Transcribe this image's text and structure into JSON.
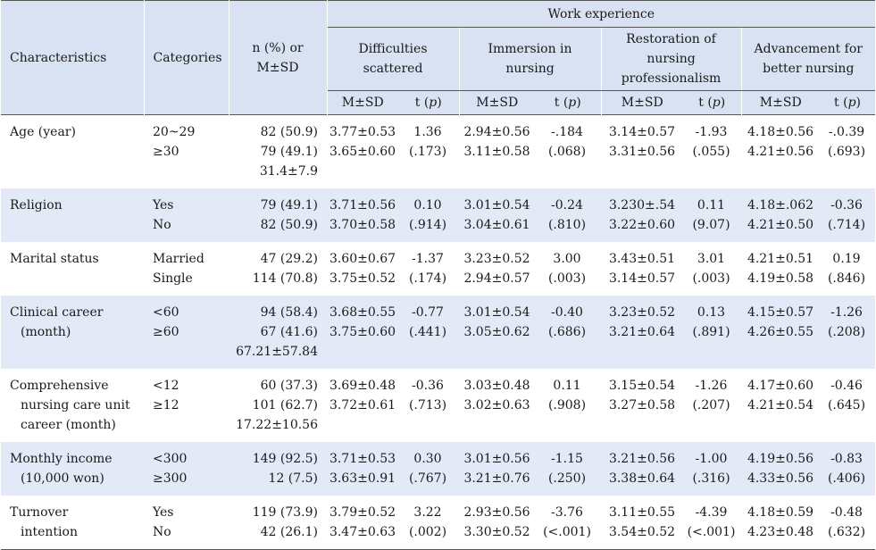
{
  "header": {
    "characteristics": "Characteristics",
    "categories": "Categories",
    "n_pct_line1": "n (%) or",
    "n_pct_line2": "M±SD",
    "work_experience": "Work experience",
    "groups": [
      {
        "lines": [
          "Difficulties",
          "scattered"
        ]
      },
      {
        "lines": [
          "Immersion in",
          "nursing"
        ]
      },
      {
        "lines": [
          "Restoration of",
          "nursing",
          "professionalism"
        ]
      },
      {
        "lines": [
          "Advancement for",
          "better nursing"
        ]
      }
    ],
    "msd": "M±SD",
    "t_label": "t (",
    "p_label": "p",
    "t_close": ")"
  },
  "rows": [
    {
      "char": [
        "Age (year)"
      ],
      "cats": [
        "20~29",
        "≥30"
      ],
      "n": [
        "82 (50.9)",
        "79 (49.1)",
        "31.4±7.9"
      ],
      "vals": [
        {
          "msd": [
            "3.77±0.53",
            "3.65±0.60"
          ],
          "t": [
            "1.36",
            "(.173)"
          ]
        },
        {
          "msd": [
            "2.94±0.56",
            "3.11±0.58"
          ],
          "t": [
            "-.184",
            "(.068)"
          ]
        },
        {
          "msd": [
            "3.14±0.57",
            "3.31±0.56"
          ],
          "t": [
            "-1.93",
            "(.055)"
          ]
        },
        {
          "msd": [
            "4.18±0.56",
            "4.21±0.56"
          ],
          "t": [
            "-.0.39",
            "(.693)"
          ]
        }
      ]
    },
    {
      "char": [
        "Religion"
      ],
      "cats": [
        "Yes",
        "No"
      ],
      "n": [
        "79 (49.1)",
        "82 (50.9)"
      ],
      "vals": [
        {
          "msd": [
            "3.71±0.56",
            "3.70±0.58"
          ],
          "t": [
            "0.10",
            "(.914)"
          ]
        },
        {
          "msd": [
            "3.01±0.54",
            "3.04±0.61"
          ],
          "t": [
            "-0.24",
            "(.810)"
          ]
        },
        {
          "msd": [
            "3.230±.54",
            "3.22±0.60"
          ],
          "t": [
            "0.11",
            "(9.07)"
          ]
        },
        {
          "msd": [
            "4.18±.062",
            "4.21±0.50"
          ],
          "t": [
            "-0.36",
            "(.714)"
          ]
        }
      ]
    },
    {
      "char": [
        "Marital status"
      ],
      "cats": [
        "Married",
        "Single"
      ],
      "n": [
        "47 (29.2)",
        "114 (70.8)"
      ],
      "vals": [
        {
          "msd": [
            "3.60±0.67",
            "3.75±0.52"
          ],
          "t": [
            "-1.37",
            "(.174)"
          ]
        },
        {
          "msd": [
            "3.23±0.52",
            "2.94±0.57"
          ],
          "t": [
            "3.00",
            "(.003)"
          ]
        },
        {
          "msd": [
            "3.43±0.51",
            "3.14±0.57"
          ],
          "t": [
            "3.01",
            "(.003)"
          ]
        },
        {
          "msd": [
            "4.21±0.51",
            "4.19±0.58"
          ],
          "t": [
            "0.19",
            "(.846)"
          ]
        }
      ]
    },
    {
      "char": [
        "Clinical career",
        "(month)"
      ],
      "cats": [
        "<60",
        "≥60"
      ],
      "n": [
        "94 (58.4)",
        "67 (41.6)",
        "67.21±57.84"
      ],
      "vals": [
        {
          "msd": [
            "3.68±0.55",
            "3.75±0.60"
          ],
          "t": [
            "-0.77",
            "(.441)"
          ]
        },
        {
          "msd": [
            "3.01±0.54",
            "3.05±0.62"
          ],
          "t": [
            "-0.40",
            "(.686)"
          ]
        },
        {
          "msd": [
            "3.23±0.52",
            "3.21±0.64"
          ],
          "t": [
            "0.13",
            "(.891)"
          ]
        },
        {
          "msd": [
            "4.15±0.57",
            "4.26±0.55"
          ],
          "t": [
            "-1.26",
            "(.208)"
          ]
        }
      ]
    },
    {
      "char": [
        "Comprehensive",
        "nursing care unit",
        "career (month)"
      ],
      "cats": [
        "<12",
        "≥12"
      ],
      "n": [
        "60 (37.3)",
        "101 (62.7)",
        "17.22±10.56"
      ],
      "vals": [
        {
          "msd": [
            "3.69±0.48",
            "3.72±0.61"
          ],
          "t": [
            "-0.36",
            "(.713)"
          ]
        },
        {
          "msd": [
            "3.03±0.48",
            "3.02±0.63"
          ],
          "t": [
            "0.11",
            "(.908)"
          ]
        },
        {
          "msd": [
            "3.15±0.54",
            "3.27±0.58"
          ],
          "t": [
            "-1.26",
            "(.207)"
          ]
        },
        {
          "msd": [
            "4.17±0.60",
            "4.21±0.54"
          ],
          "t": [
            "-0.46",
            "(.645)"
          ]
        }
      ]
    },
    {
      "char": [
        "Monthly income",
        "(10,000 won)"
      ],
      "cats": [
        "<300",
        "≥300"
      ],
      "n": [
        "149 (92.5)",
        "12 (7.5)"
      ],
      "vals": [
        {
          "msd": [
            "3.71±0.53",
            "3.63±0.91"
          ],
          "t": [
            "0.30",
            "(.767)"
          ]
        },
        {
          "msd": [
            "3.01±0.56",
            "3.21±0.76"
          ],
          "t": [
            "-1.15",
            "(.250)"
          ]
        },
        {
          "msd": [
            "3.21±0.56",
            "3.38±0.64"
          ],
          "t": [
            "-1.00",
            "(.316)"
          ]
        },
        {
          "msd": [
            "4.19±0.56",
            "4.33±0.56"
          ],
          "t": [
            "-0.83",
            "(.406)"
          ]
        }
      ]
    },
    {
      "char": [
        "Turnover",
        "intention"
      ],
      "cats": [
        "Yes",
        "No"
      ],
      "n": [
        "119 (73.9)",
        "42 (26.1)"
      ],
      "vals": [
        {
          "msd": [
            "3.79±0.52",
            "3.47±0.63"
          ],
          "t": [
            "3.22",
            "(.002)"
          ]
        },
        {
          "msd": [
            "2.93±0.56",
            "3.30±0.52"
          ],
          "t": [
            "-3.76",
            "(<.001)"
          ]
        },
        {
          "msd": [
            "3.11±0.55",
            "3.54±0.52"
          ],
          "t": [
            "-4.39",
            "(<.001)"
          ]
        },
        {
          "msd": [
            "4.18±0.59",
            "4.23±0.48"
          ],
          "t": [
            "-0.48",
            "(.632)"
          ]
        }
      ]
    }
  ]
}
